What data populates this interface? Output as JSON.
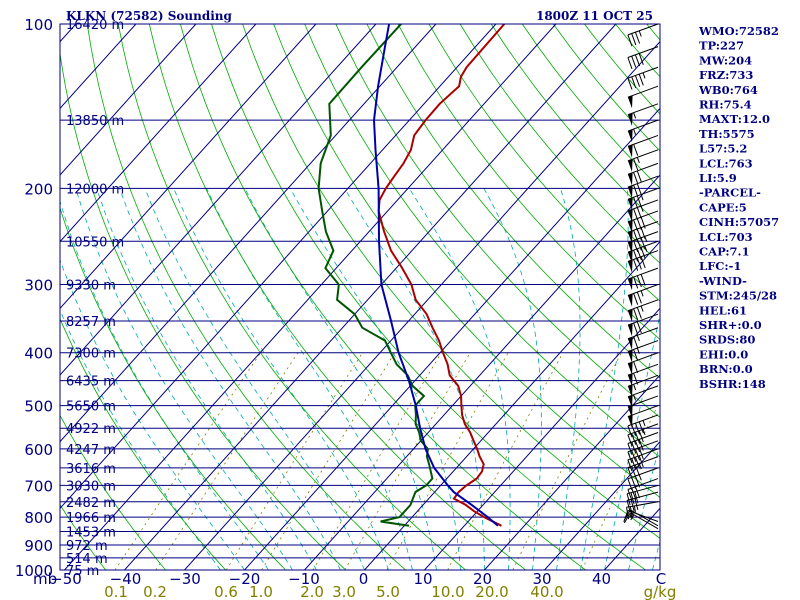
{
  "header": {
    "left": "KLKN (72582) Sounding",
    "right": "1800Z 11 OCT 25"
  },
  "stats": [
    "WMO:72582",
    "TP:227",
    "MW:204",
    "FRZ:733",
    "WB0:764",
    "RH:75.4",
    "MAXT:12.0",
    "TH:5575",
    "L57:5.2",
    "LCL:763",
    "LI:5.9",
    "-PARCEL-",
    "CAPE:5",
    "CINH:57057",
    "LCL:703",
    "CAP:7.1",
    "LFC:-1",
    "-WIND-",
    "STM:245/28",
    "HEL:61",
    "SHR+:0.0",
    "SRDS:80",
    "EHI:0.0",
    "BRN:0.0",
    "BSHR:148"
  ],
  "colors": {
    "temperature": "#aa0000",
    "dewpoint": "#005500",
    "parcel": "#0000aa",
    "isobar": "#000080",
    "isotherm": "#000080",
    "dry_adiabat": "#00aa00",
    "moist_adiabat": "#00aaaa",
    "mixing_ratio": "#808000",
    "wind_barb": "#000000"
  },
  "chart_data": {
    "type": "line",
    "chart_kind": "skew-T log-p sounding",
    "x_axis_unit_label": "mb",
    "mixing_ratio_unit": "g/kg",
    "y_scale": "log pressure (hPa)",
    "ylim": [
      1000,
      100
    ],
    "xlim": [
      -50,
      50
    ],
    "pressure_ticks": [
      100,
      200,
      300,
      400,
      500,
      600,
      700,
      800,
      900,
      1000
    ],
    "temperature_ticks": [
      "−50",
      "−40",
      "−30",
      "−20",
      "−10",
      "0",
      "10",
      "20",
      "30",
      "40",
      "C"
    ],
    "mixing_ratio_ticks": [
      "0.1",
      "0.2",
      "0.6",
      "1.0",
      "2.0",
      "3.0",
      "5.0",
      "10.0",
      "20.0",
      "40.0",
      "g/kg"
    ],
    "height_labels": [
      {
        "p": 100,
        "label": "16420 m"
      },
      {
        "p": 150,
        "label": "13850 m"
      },
      {
        "p": 200,
        "label": "12000 m"
      },
      {
        "p": 250,
        "label": "10550 m"
      },
      {
        "p": 300,
        "label": "9330 m"
      },
      {
        "p": 350,
        "label": "8257 m"
      },
      {
        "p": 400,
        "label": "7300 m"
      },
      {
        "p": 450,
        "label": "6435 m"
      },
      {
        "p": 500,
        "label": "5650 m"
      },
      {
        "p": 550,
        "label": "4922 m"
      },
      {
        "p": 600,
        "label": "4247 m"
      },
      {
        "p": 650,
        "label": "3616 m"
      },
      {
        "p": 700,
        "label": "3030 m"
      },
      {
        "p": 750,
        "label": "2482 m"
      },
      {
        "p": 800,
        "label": "1966 m"
      },
      {
        "p": 850,
        "label": "1453 m"
      },
      {
        "p": 900,
        "label": "972 m"
      },
      {
        "p": 950,
        "label": "514 m"
      },
      {
        "p": 1000,
        "label": "75 m"
      }
    ],
    "temperature_profile": [
      [
        830,
        16.2
      ],
      [
        800,
        12.0
      ],
      [
        780,
        9.4
      ],
      [
        760,
        7.1
      ],
      [
        740,
        4.2
      ],
      [
        720,
        4.0
      ],
      [
        700,
        4.3
      ],
      [
        680,
        5.0
      ],
      [
        660,
        4.8
      ],
      [
        640,
        4.0
      ],
      [
        620,
        2.2
      ],
      [
        600,
        0.6
      ],
      [
        580,
        -1.2
      ],
      [
        560,
        -3.0
      ],
      [
        540,
        -5.2
      ],
      [
        520,
        -7.0
      ],
      [
        500,
        -8.5
      ],
      [
        480,
        -10.0
      ],
      [
        460,
        -12.0
      ],
      [
        440,
        -15.0
      ],
      [
        420,
        -17.0
      ],
      [
        400,
        -19.5
      ],
      [
        380,
        -22.0
      ],
      [
        360,
        -25.0
      ],
      [
        340,
        -28.0
      ],
      [
        320,
        -32.0
      ],
      [
        300,
        -35.0
      ],
      [
        280,
        -39.0
      ],
      [
        260,
        -43.5
      ],
      [
        240,
        -47.5
      ],
      [
        220,
        -51.5
      ],
      [
        210,
        -53.0
      ],
      [
        200,
        -53.7
      ],
      [
        190,
        -54.1
      ],
      [
        180,
        -54.5
      ],
      [
        170,
        -55.3
      ],
      [
        160,
        -56.9
      ],
      [
        150,
        -57.3
      ],
      [
        140,
        -57.4
      ],
      [
        130,
        -56.8
      ],
      [
        125,
        -57.9
      ],
      [
        120,
        -58.4
      ],
      [
        100,
        -58.6
      ]
    ],
    "dewpoint_profile": [
      [
        830,
        0.8
      ],
      [
        815,
        -4.6
      ],
      [
        800,
        -2.1
      ],
      [
        760,
        -2.1
      ],
      [
        720,
        -3.2
      ],
      [
        700,
        -2.4
      ],
      [
        680,
        -2.4
      ],
      [
        640,
        -5.1
      ],
      [
        620,
        -6.6
      ],
      [
        600,
        -7.6
      ],
      [
        580,
        -10.0
      ],
      [
        560,
        -11.5
      ],
      [
        540,
        -13.4
      ],
      [
        520,
        -14.7
      ],
      [
        500,
        -16.2
      ],
      [
        480,
        -16.2
      ],
      [
        460,
        -19.6
      ],
      [
        440,
        -22.0
      ],
      [
        420,
        -25.5
      ],
      [
        400,
        -28.2
      ],
      [
        380,
        -31.0
      ],
      [
        360,
        -36.7
      ],
      [
        340,
        -40.0
      ],
      [
        320,
        -45.1
      ],
      [
        300,
        -47.1
      ],
      [
        280,
        -51.8
      ],
      [
        260,
        -53.1
      ],
      [
        240,
        -57.2
      ],
      [
        220,
        -60.9
      ],
      [
        200,
        -64.9
      ],
      [
        180,
        -68.3
      ],
      [
        160,
        -70.8
      ],
      [
        140,
        -75.8
      ],
      [
        120,
        -75.9
      ],
      [
        100,
        -75.8
      ]
    ],
    "parcel_profile": [
      [
        830,
        15.6
      ],
      [
        800,
        12.6
      ],
      [
        760,
        8.1
      ],
      [
        720,
        3.2
      ],
      [
        700,
        1.2
      ],
      [
        650,
        -3.7
      ],
      [
        600,
        -8.0
      ],
      [
        550,
        -12.0
      ],
      [
        500,
        -16.1
      ],
      [
        450,
        -21.0
      ],
      [
        400,
        -26.9
      ],
      [
        350,
        -32.9
      ],
      [
        300,
        -40.0
      ],
      [
        250,
        -46.9
      ],
      [
        200,
        -54.9
      ],
      [
        170,
        -61.2
      ],
      [
        150,
        -65.9
      ],
      [
        130,
        -70.3
      ],
      [
        110,
        -75.1
      ],
      [
        100,
        -77.8
      ]
    ],
    "wind_barbs": [
      {
        "p": 840,
        "dir": 300,
        "spd": 15
      },
      {
        "p": 830,
        "dir": 300,
        "spd": 15
      },
      {
        "p": 815,
        "dir": 290,
        "spd": 15
      },
      {
        "p": 750,
        "dir": 260,
        "spd": 25
      },
      {
        "p": 720,
        "dir": 255,
        "spd": 30
      },
      {
        "p": 700,
        "dir": 255,
        "spd": 30
      },
      {
        "p": 680,
        "dir": 250,
        "spd": 30
      },
      {
        "p": 650,
        "dir": 250,
        "spd": 35
      },
      {
        "p": 620,
        "dir": 250,
        "spd": 35
      },
      {
        "p": 600,
        "dir": 250,
        "spd": 40
      },
      {
        "p": 580,
        "dir": 250,
        "spd": 40
      },
      {
        "p": 560,
        "dir": 250,
        "spd": 40
      },
      {
        "p": 540,
        "dir": 250,
        "spd": 45
      },
      {
        "p": 520,
        "dir": 250,
        "spd": 45
      },
      {
        "p": 500,
        "dir": 250,
        "spd": 50
      },
      {
        "p": 480,
        "dir": 250,
        "spd": 50
      },
      {
        "p": 460,
        "dir": 250,
        "spd": 55
      },
      {
        "p": 440,
        "dir": 250,
        "spd": 55
      },
      {
        "p": 420,
        "dir": 250,
        "spd": 60
      },
      {
        "p": 400,
        "dir": 250,
        "spd": 60
      },
      {
        "p": 380,
        "dir": 250,
        "spd": 65
      },
      {
        "p": 360,
        "dir": 250,
        "spd": 65
      },
      {
        "p": 340,
        "dir": 250,
        "spd": 70
      },
      {
        "p": 320,
        "dir": 250,
        "spd": 75
      },
      {
        "p": 300,
        "dir": 250,
        "spd": 75
      },
      {
        "p": 280,
        "dir": 250,
        "spd": 80
      },
      {
        "p": 260,
        "dir": 250,
        "spd": 80
      },
      {
        "p": 250,
        "dir": 250,
        "spd": 85
      },
      {
        "p": 240,
        "dir": 250,
        "spd": 85
      },
      {
        "p": 230,
        "dir": 250,
        "spd": 80
      },
      {
        "p": 220,
        "dir": 250,
        "spd": 80
      },
      {
        "p": 210,
        "dir": 250,
        "spd": 75
      },
      {
        "p": 200,
        "dir": 250,
        "spd": 75
      },
      {
        "p": 190,
        "dir": 250,
        "spd": 70
      },
      {
        "p": 180,
        "dir": 250,
        "spd": 70
      },
      {
        "p": 170,
        "dir": 250,
        "spd": 65
      },
      {
        "p": 160,
        "dir": 250,
        "spd": 60
      },
      {
        "p": 150,
        "dir": 250,
        "spd": 55
      },
      {
        "p": 140,
        "dir": 250,
        "spd": 55
      },
      {
        "p": 130,
        "dir": 250,
        "spd": 50
      },
      {
        "p": 120,
        "dir": 250,
        "spd": 45
      },
      {
        "p": 110,
        "dir": 250,
        "spd": 40
      },
      {
        "p": 100,
        "dir": 250,
        "spd": 35
      }
    ]
  }
}
